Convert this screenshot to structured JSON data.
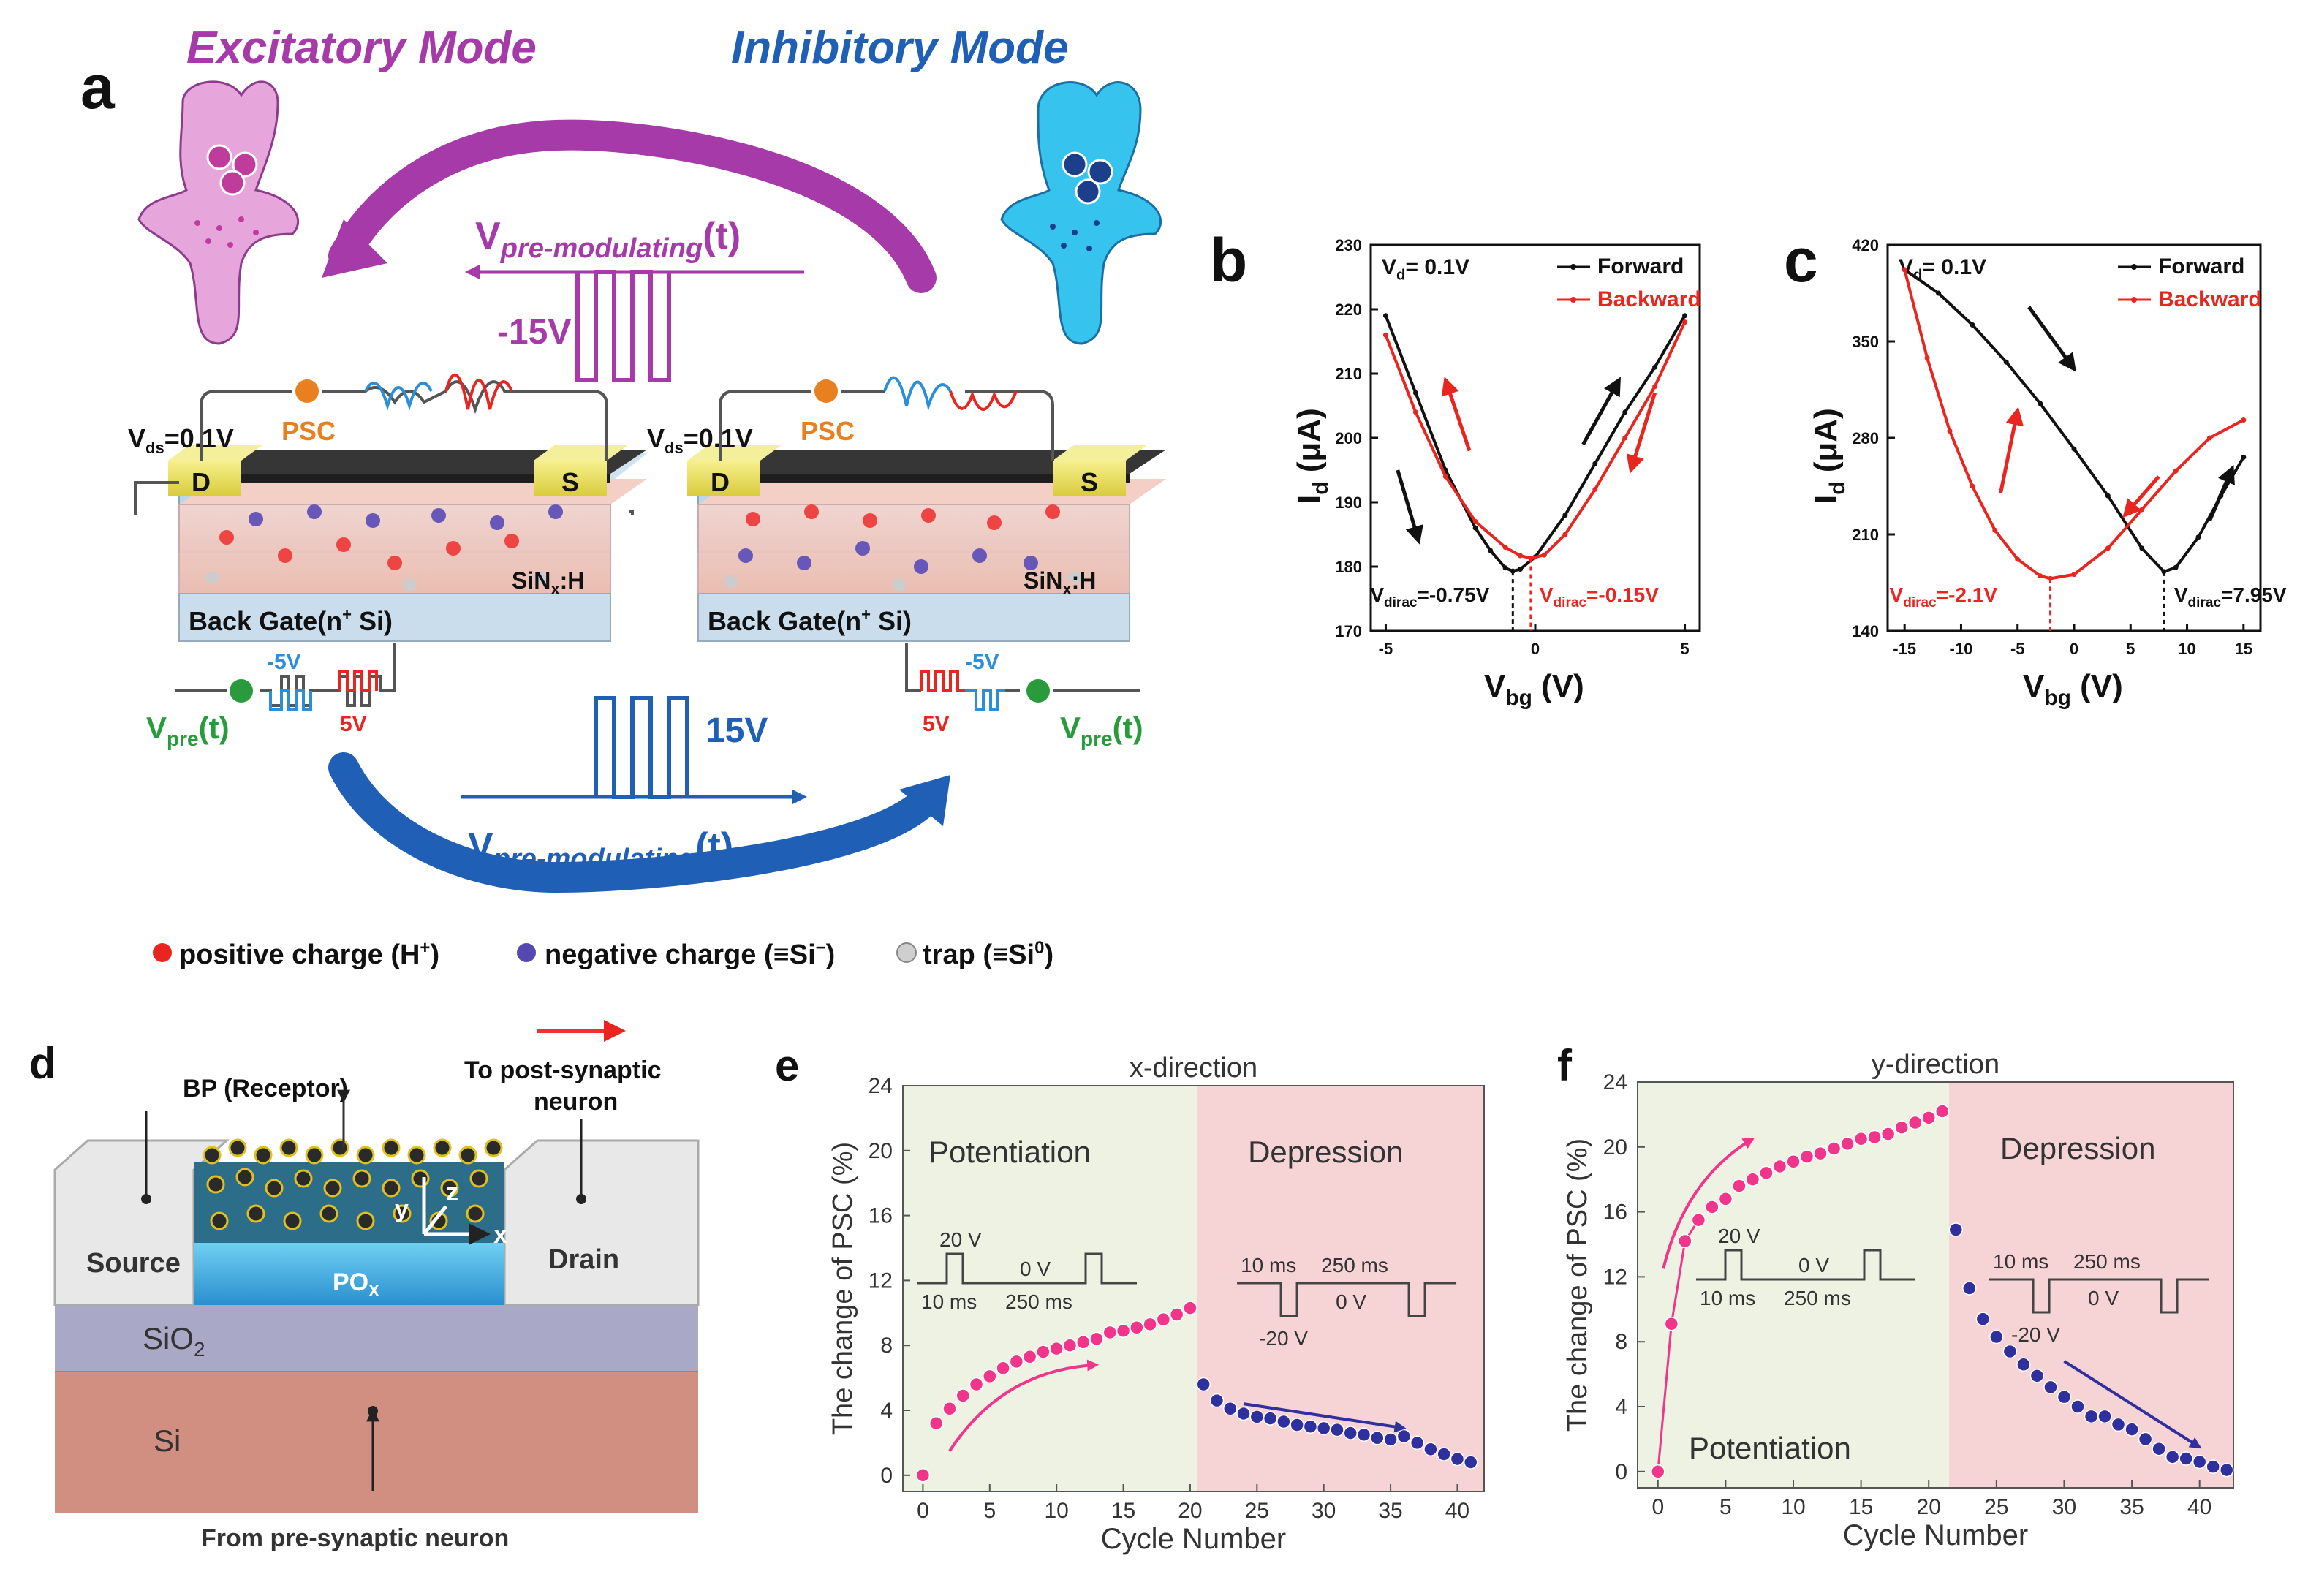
{
  "panel_a": {
    "letter": "a",
    "excitatory_title": "Excitatory Mode",
    "inhibitory_title": "Inhibitory Mode",
    "v_pre_mod_base": "V",
    "v_pre_mod_sub": "pre-modulating",
    "v_pre_mod_suffix": "(t)",
    "top_pulse": "-15V",
    "bottom_pulse": "15V",
    "vds": "V",
    "vds_sub": "ds",
    "vds_val": "=0.1V",
    "psc": "PSC",
    "drain": "D",
    "source": "S",
    "sinx": "SiN",
    "sinx_sub": "x",
    "sinx_suffix": ":H",
    "back_gate": "Back Gate(n",
    "back_gate_sup": "+",
    "back_gate_suffix": " Si)",
    "neg5": "-5V",
    "pos5": "5V",
    "vpre": "V",
    "vpre_sub": "pre",
    "vpre_suffix": "(t)",
    "legend_pos": "positive charge (H",
    "legend_pos_sup": "+",
    "legend_pos_end": ")",
    "legend_neg": "negative charge (≡Si",
    "legend_neg_sup": "−",
    "legend_neg_end": ")",
    "legend_trap": "trap (≡Si",
    "legend_trap_sup": "0",
    "legend_trap_end": ")",
    "colors": {
      "excitatory": "#a63aa8",
      "inhibitory": "#1f5fb5",
      "pink": "#e7a6dc",
      "cyan": "#36c3ee"
    }
  },
  "panel_d": {
    "letter": "d",
    "receptor": "BP (Receptor)",
    "to_post_1": "To post-synaptic",
    "to_post_2": "neuron",
    "source": "Source",
    "drain": "Drain",
    "pox": "PO",
    "pox_sub": "X",
    "sio2": "SiO",
    "sio2_sub": "2",
    "si": "Si",
    "from_pre": "From pre-synaptic neuron",
    "axis_x": "x",
    "axis_y": "y",
    "axis_z": "z"
  },
  "chart_data": [
    {
      "panel": "b",
      "type": "line",
      "title": "",
      "xlabel": "V",
      "xlabel_sub": "bg",
      "xlabel_unit": " (V)",
      "ylabel": "I",
      "ylabel_sub": "d",
      "ylabel_unit": " (μA)",
      "xlim": [
        -5.5,
        5.5
      ],
      "ylim": [
        170,
        230
      ],
      "xticks": [
        "-5",
        "0",
        "5"
      ],
      "yticks": [
        "170",
        "180",
        "190",
        "200",
        "210",
        "220",
        "230"
      ],
      "annotation": "V",
      "annotation_sub": "d",
      "annotation_val": "= 0.1V",
      "legend": [
        "Forward",
        "Backward"
      ],
      "series": [
        {
          "name": "Forward",
          "color": "#111111",
          "x": [
            -5,
            -4,
            -3,
            -2,
            -1.5,
            -1,
            -0.75,
            -0.5,
            0,
            1,
            2,
            3,
            4,
            5
          ],
          "y": [
            219,
            207,
            195,
            186,
            182.5,
            179.8,
            179.3,
            179.6,
            181.5,
            188,
            196,
            204,
            211,
            219
          ]
        },
        {
          "name": "Backward",
          "color": "#e8251f",
          "x": [
            -5,
            -4,
            -3,
            -2,
            -1,
            -0.5,
            -0.15,
            0.3,
            1,
            2,
            3,
            4,
            5
          ],
          "y": [
            216,
            204,
            194,
            187,
            183,
            181.7,
            181.3,
            181.8,
            185,
            192,
            200,
            208,
            218
          ]
        }
      ],
      "dirac_labels": [
        {
          "text": "V",
          "sub": "dirac",
          "val": "=-0.75V",
          "x": -0.75,
          "color": "#111111"
        },
        {
          "text": "V",
          "sub": "dirac",
          "val": "=-0.15V",
          "x": -0.15,
          "color": "#e8251f"
        }
      ]
    },
    {
      "panel": "c",
      "type": "line",
      "title": "",
      "xlabel": "V",
      "xlabel_sub": "bg",
      "xlabel_unit": " (V)",
      "ylabel": "I",
      "ylabel_sub": "d",
      "ylabel_unit": " (μA)",
      "xlim": [
        -16.5,
        16.5
      ],
      "ylim": [
        140,
        420
      ],
      "xticks": [
        "-15",
        "-10",
        "-5",
        "0",
        "5",
        "10",
        "15"
      ],
      "yticks": [
        "140",
        "210",
        "280",
        "350",
        "420"
      ],
      "annotation": "V",
      "annotation_sub": "d",
      "annotation_val": "= 0.1V",
      "legend": [
        "Forward",
        "Backward"
      ],
      "series": [
        {
          "name": "Forward",
          "color": "#111111",
          "x": [
            -15,
            -12,
            -9,
            -6,
            -3,
            0,
            3,
            6,
            7.95,
            9,
            11,
            13,
            15
          ],
          "y": [
            402,
            385,
            362,
            335,
            305,
            272,
            238,
            200,
            183,
            186,
            208,
            238,
            266
          ]
        },
        {
          "name": "Backward",
          "color": "#e8251f",
          "x": [
            -15,
            -13,
            -11,
            -9,
            -7,
            -5,
            -3,
            -2.1,
            0,
            3,
            6,
            9,
            12,
            15
          ],
          "y": [
            402,
            338,
            285,
            245,
            213,
            192,
            180,
            178,
            181,
            200,
            228,
            256,
            280,
            293
          ]
        }
      ],
      "dirac_labels": [
        {
          "text": "V",
          "sub": "dirac",
          "val": "=-2.1V",
          "x": -2.1,
          "color": "#e8251f"
        },
        {
          "text": "V",
          "sub": "dirac",
          "val": "=7.95V",
          "x": 7.95,
          "color": "#111111"
        }
      ]
    },
    {
      "panel": "e",
      "type": "scatter",
      "title": "x-direction",
      "xlabel": "Cycle Number",
      "ylabel": "The change of PSC (%)",
      "xlim": [
        -1.5,
        42
      ],
      "ylim": [
        -1,
        24
      ],
      "xticks": [
        "0",
        "5",
        "10",
        "15",
        "20",
        "25",
        "30",
        "35",
        "40"
      ],
      "yticks": [
        "0",
        "4",
        "8",
        "12",
        "16",
        "20",
        "24"
      ],
      "potentiation_label": "Potentiation",
      "depression_label": "Depression",
      "pot_pulse": {
        "amp": "20 V",
        "zero": "0 V",
        "width": "10 ms",
        "gap": "250 ms"
      },
      "dep_pulse": {
        "amp": "-20 V",
        "zero": "0 V",
        "width": "10 ms",
        "gap": "250 ms"
      },
      "series": [
        {
          "name": "Potentiation",
          "color": "#f0358a",
          "x": [
            0,
            1,
            2,
            3,
            4,
            5,
            6,
            7,
            8,
            9,
            10,
            11,
            12,
            13,
            14,
            15,
            16,
            17,
            18,
            19,
            20
          ],
          "values": [
            0.0,
            3.2,
            4.1,
            4.9,
            5.6,
            6.1,
            6.6,
            7.0,
            7.3,
            7.6,
            7.8,
            8.0,
            8.2,
            8.4,
            8.8,
            8.9,
            9.1,
            9.3,
            9.6,
            9.9,
            10.3
          ]
        },
        {
          "name": "Depression",
          "color": "#2f2f9e",
          "x": [
            21,
            22,
            23,
            24,
            25,
            26,
            27,
            28,
            29,
            30,
            31,
            32,
            33,
            34,
            35,
            36,
            37,
            38,
            39,
            40,
            41
          ],
          "values": [
            5.6,
            4.6,
            4.1,
            3.8,
            3.6,
            3.5,
            3.3,
            3.1,
            3.0,
            2.9,
            2.8,
            2.6,
            2.5,
            2.3,
            2.2,
            2.4,
            2.0,
            1.6,
            1.3,
            1.0,
            0.8
          ]
        }
      ]
    },
    {
      "panel": "f",
      "type": "scatter",
      "title": "y-direction",
      "xlabel": "Cycle Number",
      "ylabel": "The change of PSC (%)",
      "xlim": [
        -1.5,
        42.5
      ],
      "ylim": [
        -1,
        24
      ],
      "xticks": [
        "0",
        "5",
        "10",
        "15",
        "20",
        "25",
        "30",
        "35",
        "40"
      ],
      "yticks": [
        "0",
        "4",
        "8",
        "12",
        "16",
        "20",
        "24"
      ],
      "potentiation_label": "Potentiation",
      "depression_label": "Depression",
      "pot_pulse": {
        "amp": "20 V",
        "zero": "0 V",
        "width": "10 ms",
        "gap": "250 ms"
      },
      "dep_pulse": {
        "amp": "-20 V",
        "zero": "0 V",
        "width": "10 ms",
        "gap": "250 ms"
      },
      "series": [
        {
          "name": "Potentiation",
          "color": "#f0358a",
          "x": [
            0,
            1,
            2,
            3,
            4,
            5,
            6,
            7,
            8,
            9,
            10,
            11,
            12,
            13,
            14,
            15,
            16,
            17,
            18,
            19,
            20,
            21
          ],
          "values": [
            0.0,
            9.1,
            14.2,
            15.5,
            16.3,
            16.8,
            17.6,
            18.0,
            18.4,
            18.8,
            19.1,
            19.4,
            19.6,
            19.9,
            20.2,
            20.5,
            20.6,
            20.8,
            21.2,
            21.5,
            21.8,
            22.2
          ]
        },
        {
          "name": "Depression",
          "color": "#2f2f9e",
          "x": [
            22,
            23,
            24,
            25,
            26,
            27,
            28,
            29,
            30,
            31,
            32,
            33,
            34,
            35,
            36,
            37,
            38,
            39,
            40,
            41,
            42
          ],
          "values": [
            14.9,
            11.3,
            9.4,
            8.3,
            7.4,
            6.6,
            5.9,
            5.2,
            4.6,
            4.0,
            3.4,
            3.4,
            2.9,
            2.6,
            2.0,
            1.4,
            0.9,
            0.8,
            0.6,
            0.3,
            0.1
          ]
        }
      ]
    }
  ]
}
